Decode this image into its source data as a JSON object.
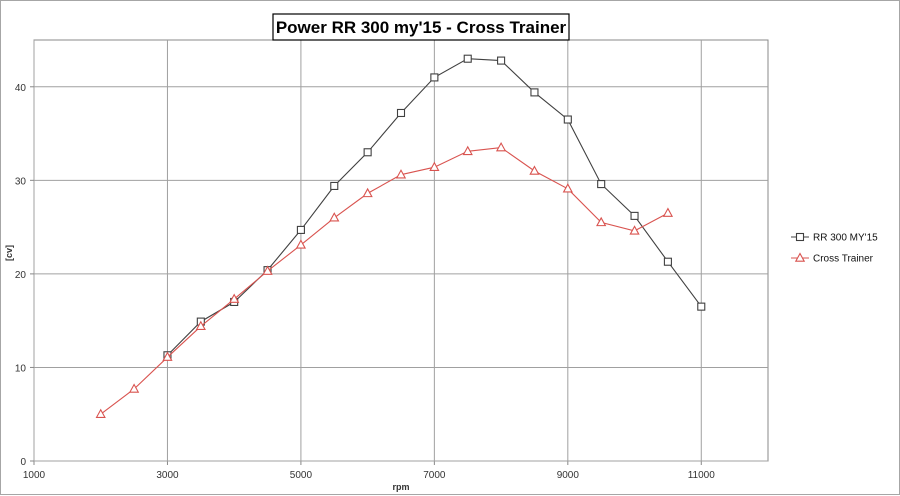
{
  "chart_data": {
    "type": "line",
    "title": "Power RR 300 my'15 - Cross Trainer",
    "xlabel": "rpm",
    "ylabel": "[cv]",
    "xlim": [
      1000,
      12000
    ],
    "ylim": [
      0,
      45
    ],
    "xticks": [
      1000,
      3000,
      5000,
      7000,
      9000,
      11000
    ],
    "yticks": [
      0,
      10,
      20,
      30,
      40
    ],
    "grid": true,
    "legend_position": "right",
    "series": [
      {
        "name": "RR 300 MY'15",
        "color": "#404040",
        "marker": "square",
        "x": [
          3000,
          3500,
          4000,
          4500,
          5000,
          5500,
          6000,
          6500,
          7000,
          7500,
          8000,
          8500,
          9000,
          9500,
          10000,
          10500,
          11000
        ],
        "y": [
          11.3,
          14.9,
          17.0,
          20.4,
          24.7,
          29.4,
          33.0,
          37.2,
          41.0,
          43.0,
          42.8,
          39.4,
          36.5,
          29.6,
          26.2,
          21.3,
          16.5
        ]
      },
      {
        "name": "Cross Trainer",
        "color": "#d9534f",
        "marker": "triangle",
        "x": [
          2000,
          2500,
          3000,
          3500,
          4000,
          4500,
          5000,
          5500,
          6000,
          6500,
          7000,
          7500,
          8000,
          8500,
          9000,
          9500,
          10000,
          10500
        ],
        "y": [
          5.0,
          7.7,
          11.1,
          14.4,
          17.3,
          20.3,
          23.1,
          26.0,
          28.6,
          30.6,
          31.4,
          33.1,
          33.5,
          31.0,
          29.1,
          25.5,
          24.6,
          26.5
        ]
      }
    ]
  }
}
